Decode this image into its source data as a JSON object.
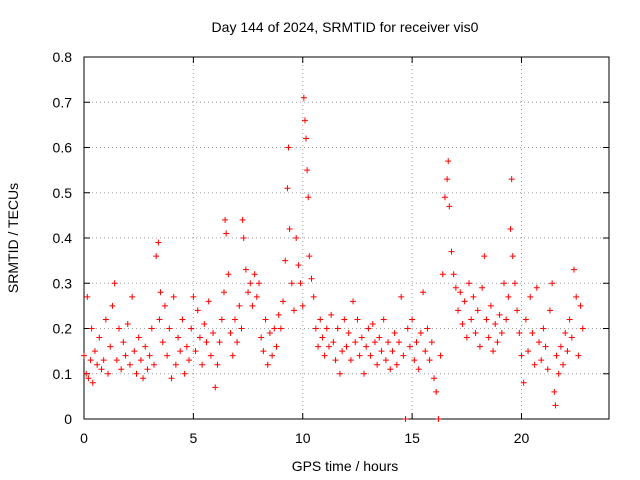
{
  "chart_data": {
    "type": "scatter",
    "title": "Day 144 of 2024, SRMTID for receiver vis0",
    "xlabel": "GPS time / hours",
    "ylabel": "SRMTID / TECUs",
    "xlim": [
      0,
      24
    ],
    "ylim": [
      0,
      0.8
    ],
    "x_ticks": [
      "0",
      "5",
      "10",
      "15",
      "20"
    ],
    "y_ticks": [
      "0",
      "0.1",
      "0.2",
      "0.3",
      "0.4",
      "0.5",
      "0.6",
      "0.7",
      "0.8"
    ],
    "grid": true,
    "marker": "+",
    "series": [
      {
        "name": "SRMTID",
        "color": "#ff0000",
        "points": [
          [
            0.0,
            0.14
          ],
          [
            0.1,
            0.1
          ],
          [
            0.15,
            0.27
          ],
          [
            0.2,
            0.09
          ],
          [
            0.3,
            0.13
          ],
          [
            0.35,
            0.2
          ],
          [
            0.4,
            0.08
          ],
          [
            0.5,
            0.15
          ],
          [
            0.6,
            0.12
          ],
          [
            0.7,
            0.18
          ],
          [
            0.8,
            0.11
          ],
          [
            0.9,
            0.13
          ],
          [
            1.0,
            0.22
          ],
          [
            1.1,
            0.1
          ],
          [
            1.2,
            0.16
          ],
          [
            1.3,
            0.25
          ],
          [
            1.4,
            0.3
          ],
          [
            1.5,
            0.13
          ],
          [
            1.6,
            0.2
          ],
          [
            1.7,
            0.11
          ],
          [
            1.8,
            0.17
          ],
          [
            1.9,
            0.14
          ],
          [
            2.0,
            0.21
          ],
          [
            2.1,
            0.12
          ],
          [
            2.2,
            0.27
          ],
          [
            2.3,
            0.15
          ],
          [
            2.4,
            0.1
          ],
          [
            2.5,
            0.18
          ],
          [
            2.6,
            0.13
          ],
          [
            2.7,
            0.09
          ],
          [
            2.8,
            0.16
          ],
          [
            2.9,
            0.11
          ],
          [
            3.0,
            0.14
          ],
          [
            3.1,
            0.2
          ],
          [
            3.2,
            0.12
          ],
          [
            3.3,
            0.36
          ],
          [
            3.4,
            0.39
          ],
          [
            3.45,
            0.22
          ],
          [
            3.5,
            0.28
          ],
          [
            3.6,
            0.17
          ],
          [
            3.7,
            0.25
          ],
          [
            3.8,
            0.14
          ],
          [
            3.9,
            0.2
          ],
          [
            4.0,
            0.09
          ],
          [
            4.1,
            0.27
          ],
          [
            4.2,
            0.12
          ],
          [
            4.3,
            0.18
          ],
          [
            4.4,
            0.15
          ],
          [
            4.5,
            0.22
          ],
          [
            4.6,
            0.1
          ],
          [
            4.7,
            0.16
          ],
          [
            4.8,
            0.13
          ],
          [
            4.9,
            0.2
          ],
          [
            5.0,
            0.27
          ],
          [
            5.1,
            0.15
          ],
          [
            5.2,
            0.24
          ],
          [
            5.3,
            0.18
          ],
          [
            5.4,
            0.12
          ],
          [
            5.5,
            0.21
          ],
          [
            5.6,
            0.17
          ],
          [
            5.7,
            0.26
          ],
          [
            5.8,
            0.14
          ],
          [
            5.9,
            0.19
          ],
          [
            6.0,
            0.07
          ],
          [
            6.1,
            0.12
          ],
          [
            6.2,
            0.17
          ],
          [
            6.3,
            0.22
          ],
          [
            6.4,
            0.28
          ],
          [
            6.45,
            0.44
          ],
          [
            6.5,
            0.41
          ],
          [
            6.6,
            0.32
          ],
          [
            6.7,
            0.19
          ],
          [
            6.8,
            0.14
          ],
          [
            6.9,
            0.22
          ],
          [
            7.0,
            0.17
          ],
          [
            7.1,
            0.25
          ],
          [
            7.2,
            0.2
          ],
          [
            7.25,
            0.44
          ],
          [
            7.3,
            0.4
          ],
          [
            7.4,
            0.33
          ],
          [
            7.5,
            0.28
          ],
          [
            7.6,
            0.3
          ],
          [
            7.7,
            0.25
          ],
          [
            7.8,
            0.32
          ],
          [
            7.9,
            0.27
          ],
          [
            8.0,
            0.3
          ],
          [
            8.1,
            0.18
          ],
          [
            8.2,
            0.15
          ],
          [
            8.3,
            0.22
          ],
          [
            8.4,
            0.12
          ],
          [
            8.5,
            0.19
          ],
          [
            8.6,
            0.14
          ],
          [
            8.7,
            0.2
          ],
          [
            8.8,
            0.16
          ],
          [
            8.9,
            0.23
          ],
          [
            9.0,
            0.2
          ],
          [
            9.1,
            0.26
          ],
          [
            9.2,
            0.35
          ],
          [
            9.3,
            0.51
          ],
          [
            9.35,
            0.6
          ],
          [
            9.4,
            0.42
          ],
          [
            9.5,
            0.3
          ],
          [
            9.6,
            0.24
          ],
          [
            9.7,
            0.4
          ],
          [
            9.8,
            0.34
          ],
          [
            9.9,
            0.3
          ],
          [
            10.0,
            0.25
          ],
          [
            10.05,
            0.71
          ],
          [
            10.1,
            0.66
          ],
          [
            10.15,
            0.62
          ],
          [
            10.2,
            0.55
          ],
          [
            10.25,
            0.49
          ],
          [
            10.3,
            0.36
          ],
          [
            10.4,
            0.31
          ],
          [
            10.5,
            0.27
          ],
          [
            10.6,
            0.2
          ],
          [
            10.7,
            0.16
          ],
          [
            10.8,
            0.22
          ],
          [
            10.9,
            0.18
          ],
          [
            11.0,
            0.14
          ],
          [
            11.1,
            0.2
          ],
          [
            11.2,
            0.16
          ],
          [
            11.3,
            0.23
          ],
          [
            11.4,
            0.17
          ],
          [
            11.5,
            0.13
          ],
          [
            11.6,
            0.2
          ],
          [
            11.7,
            0.1
          ],
          [
            11.8,
            0.15
          ],
          [
            11.9,
            0.22
          ],
          [
            12.0,
            0.16
          ],
          [
            12.1,
            0.19
          ],
          [
            12.2,
            0.13
          ],
          [
            12.3,
            0.26
          ],
          [
            12.4,
            0.17
          ],
          [
            12.5,
            0.22
          ],
          [
            12.6,
            0.14
          ],
          [
            12.7,
            0.18
          ],
          [
            12.8,
            0.1
          ],
          [
            12.9,
            0.16
          ],
          [
            13.0,
            0.2
          ],
          [
            13.1,
            0.14
          ],
          [
            13.2,
            0.21
          ],
          [
            13.3,
            0.17
          ],
          [
            13.4,
            0.12
          ],
          [
            13.5,
            0.18
          ],
          [
            13.6,
            0.15
          ],
          [
            13.7,
            0.22
          ],
          [
            13.8,
            0.13
          ],
          [
            13.9,
            0.17
          ],
          [
            14.0,
            0.11
          ],
          [
            14.1,
            0.15
          ],
          [
            14.2,
            0.19
          ],
          [
            14.3,
            0.12
          ],
          [
            14.4,
            0.17
          ],
          [
            14.5,
            0.27
          ],
          [
            14.6,
            0.14
          ],
          [
            14.7,
            0.0
          ],
          [
            14.8,
            0.2
          ],
          [
            14.9,
            0.16
          ],
          [
            15.0,
            0.22
          ],
          [
            15.1,
            0.13
          ],
          [
            15.2,
            0.17
          ],
          [
            15.3,
            0.11
          ],
          [
            15.4,
            0.19
          ],
          [
            15.5,
            0.28
          ],
          [
            15.6,
            0.15
          ],
          [
            15.7,
            0.2
          ],
          [
            15.8,
            0.13
          ],
          [
            15.9,
            0.17
          ],
          [
            16.0,
            0.09
          ],
          [
            16.1,
            0.06
          ],
          [
            16.2,
            0.0
          ],
          [
            16.3,
            0.14
          ],
          [
            16.4,
            0.32
          ],
          [
            16.5,
            0.49
          ],
          [
            16.6,
            0.53
          ],
          [
            16.65,
            0.57
          ],
          [
            16.7,
            0.47
          ],
          [
            16.8,
            0.37
          ],
          [
            16.9,
            0.32
          ],
          [
            17.0,
            0.29
          ],
          [
            17.1,
            0.24
          ],
          [
            17.2,
            0.28
          ],
          [
            17.3,
            0.21
          ],
          [
            17.4,
            0.26
          ],
          [
            17.5,
            0.18
          ],
          [
            17.6,
            0.3
          ],
          [
            17.7,
            0.22
          ],
          [
            17.8,
            0.27
          ],
          [
            17.9,
            0.19
          ],
          [
            18.0,
            0.24
          ],
          [
            18.1,
            0.16
          ],
          [
            18.2,
            0.29
          ],
          [
            18.3,
            0.36
          ],
          [
            18.4,
            0.22
          ],
          [
            18.5,
            0.18
          ],
          [
            18.6,
            0.25
          ],
          [
            18.7,
            0.15
          ],
          [
            18.8,
            0.21
          ],
          [
            18.9,
            0.17
          ],
          [
            19.0,
            0.23
          ],
          [
            19.1,
            0.19
          ],
          [
            19.2,
            0.3
          ],
          [
            19.3,
            0.22
          ],
          [
            19.4,
            0.27
          ],
          [
            19.5,
            0.42
          ],
          [
            19.55,
            0.53
          ],
          [
            19.6,
            0.36
          ],
          [
            19.7,
            0.3
          ],
          [
            19.8,
            0.24
          ],
          [
            19.9,
            0.19
          ],
          [
            20.0,
            0.14
          ],
          [
            20.1,
            0.08
          ],
          [
            20.2,
            0.22
          ],
          [
            20.3,
            0.15
          ],
          [
            20.4,
            0.27
          ],
          [
            20.5,
            0.19
          ],
          [
            20.6,
            0.12
          ],
          [
            20.7,
            0.29
          ],
          [
            20.8,
            0.17
          ],
          [
            20.9,
            0.13
          ],
          [
            21.0,
            0.2
          ],
          [
            21.1,
            0.16
          ],
          [
            21.2,
            0.11
          ],
          [
            21.3,
            0.24
          ],
          [
            21.4,
            0.3
          ],
          [
            21.5,
            0.06
          ],
          [
            21.55,
            0.03
          ],
          [
            21.6,
            0.14
          ],
          [
            21.7,
            0.1
          ],
          [
            21.8,
            0.16
          ],
          [
            21.9,
            0.12
          ],
          [
            22.0,
            0.19
          ],
          [
            22.1,
            0.15
          ],
          [
            22.2,
            0.22
          ],
          [
            22.3,
            0.18
          ],
          [
            22.4,
            0.33
          ],
          [
            22.5,
            0.27
          ],
          [
            22.6,
            0.14
          ],
          [
            22.7,
            0.25
          ],
          [
            22.8,
            0.2
          ]
        ]
      }
    ]
  }
}
